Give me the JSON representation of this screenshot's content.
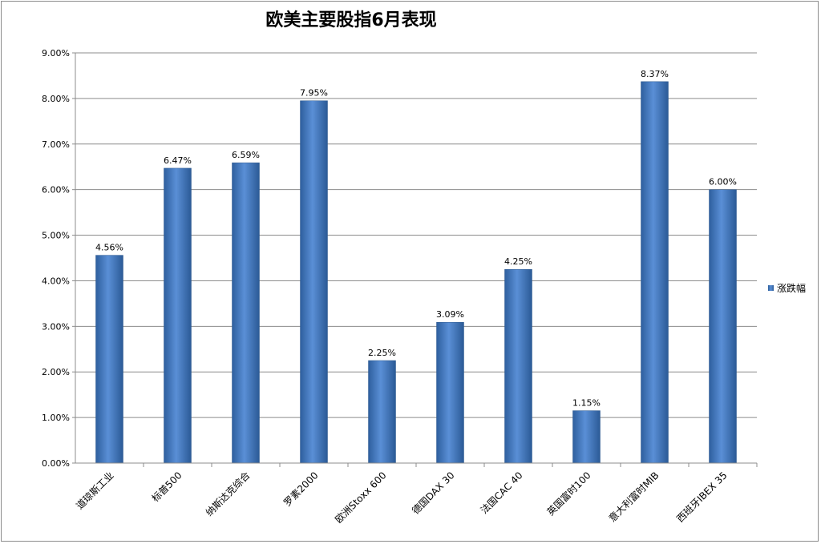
{
  "chart_data": {
    "type": "bar",
    "title": "欧美主要股指6月表现",
    "categories": [
      "道琼斯工业",
      "标普500",
      "纳斯达克综合",
      "罗素2000",
      "欧洲Stoxx 600",
      "德国DAX 30",
      "法国CAC 40",
      "英国富时100",
      "意大利富时MIB",
      "西班牙IBEX 35"
    ],
    "series": [
      {
        "name": "涨跌幅",
        "values": [
          4.56,
          6.47,
          6.59,
          7.95,
          2.25,
          3.09,
          4.25,
          1.15,
          8.37,
          6.0
        ],
        "labels": [
          "4.56%",
          "6.47%",
          "6.59%",
          "7.95%",
          "2.25%",
          "3.09%",
          "4.25%",
          "1.15%",
          "8.37%",
          "6.00%"
        ],
        "color": "#4a7ebb"
      }
    ],
    "ylim": [
      0,
      9
    ],
    "yticks": [
      "0.00%",
      "1.00%",
      "2.00%",
      "3.00%",
      "4.00%",
      "5.00%",
      "6.00%",
      "7.00%",
      "8.00%",
      "9.00%"
    ],
    "grid": true,
    "legend": "right"
  }
}
